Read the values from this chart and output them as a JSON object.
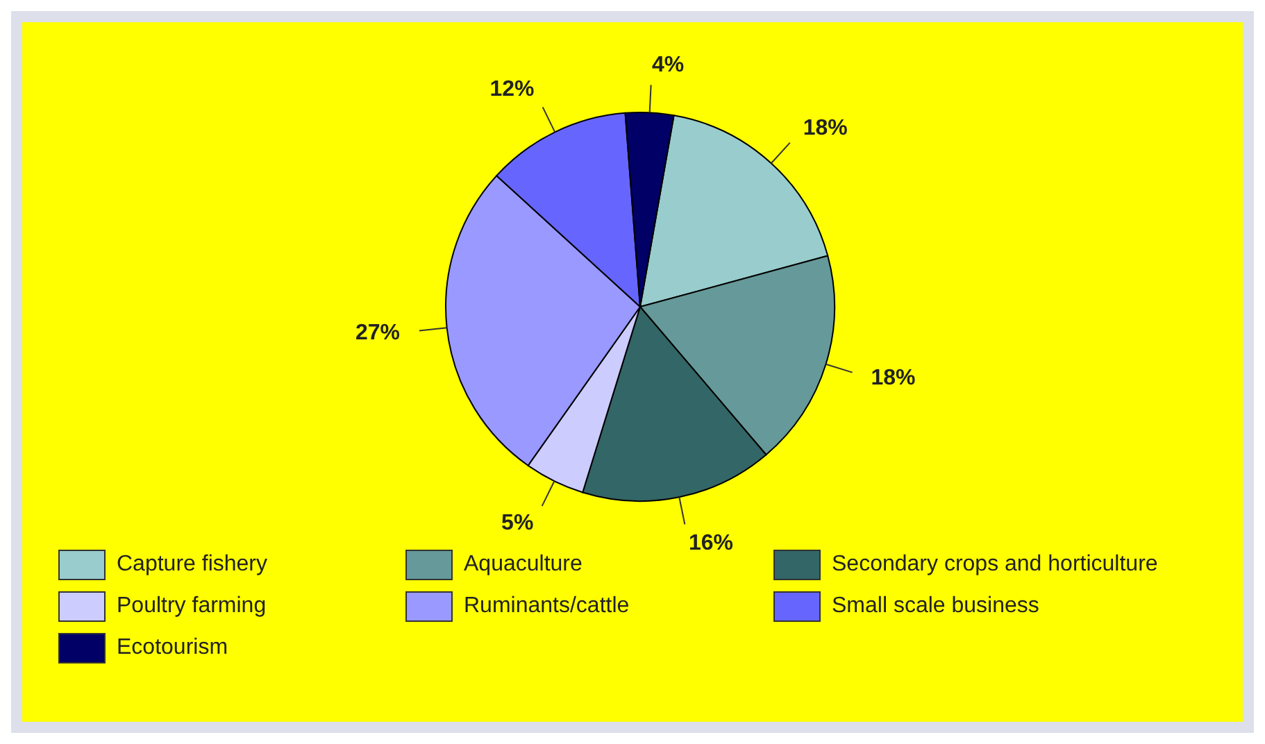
{
  "chart_data": {
    "type": "pie",
    "categories": [
      "Capture fishery",
      "Aquaculture",
      "Secondary crops and horticulture",
      "Poultry farming",
      "Ruminants/cattle",
      "Small scale business",
      "Ecotourism"
    ],
    "values": [
      18,
      18,
      16,
      5,
      27,
      12,
      4
    ],
    "value_labels": [
      "18%",
      "18%",
      "16%",
      "5%",
      "27%",
      "12%",
      "4%"
    ],
    "colors": [
      "#99cccc",
      "#669999",
      "#336666",
      "#ccccff",
      "#9999ff",
      "#6666ff",
      "#000066"
    ],
    "legend": "bottom"
  }
}
